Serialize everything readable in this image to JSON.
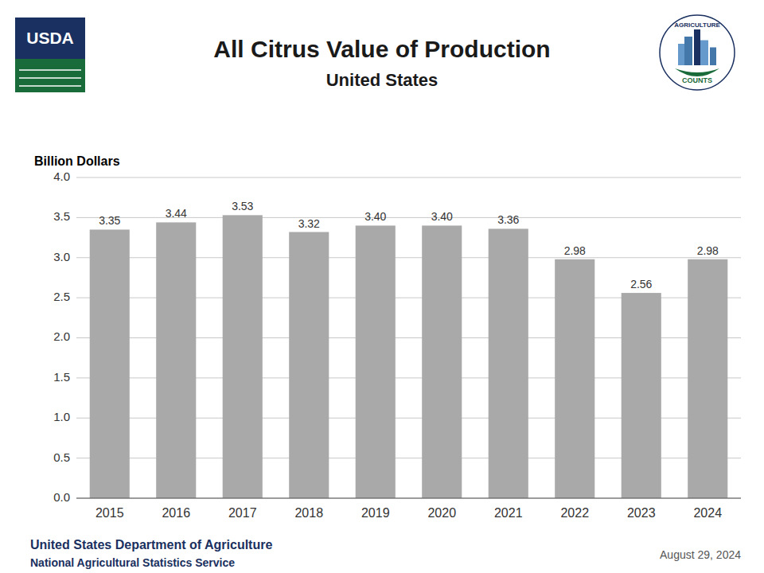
{
  "chart_data": {
    "type": "bar",
    "title": "All Citrus Value of Production",
    "subtitle": "United States",
    "ylabel": "Billion Dollars",
    "categories": [
      "2015",
      "2016",
      "2017",
      "2018",
      "2019",
      "2020",
      "2021",
      "2022",
      "2023",
      "2024"
    ],
    "values": [
      3.35,
      3.44,
      3.53,
      3.32,
      3.4,
      3.4,
      3.36,
      2.98,
      2.56,
      2.98
    ],
    "value_labels": [
      "3.35",
      "3.44",
      "3.53",
      "3.32",
      "3.40",
      "3.40",
      "3.36",
      "2.98",
      "2.56",
      "2.98"
    ],
    "color": "#A9A9A9",
    "ylim": [
      0,
      4.0
    ],
    "yticks": [
      {
        "value": 0.0,
        "label": "0.0"
      },
      0.5,
      {
        "value": 1.0,
        "label": "1.0"
      },
      1.5,
      {
        "value": 2.0,
        "label": "2.0"
      },
      2.5,
      {
        "value": 3.0,
        "label": "3.0"
      },
      3.5,
      {
        "value": 4.0,
        "label": "4.0"
      }
    ],
    "grid": true,
    "data_labels": true,
    "annotations": [
      "United States Department of Agriculture",
      "National Agricultural Statistics Service",
      "August 29, 2024",
      "USDA",
      "AGRICULTURE",
      "COUNTS"
    ]
  }
}
